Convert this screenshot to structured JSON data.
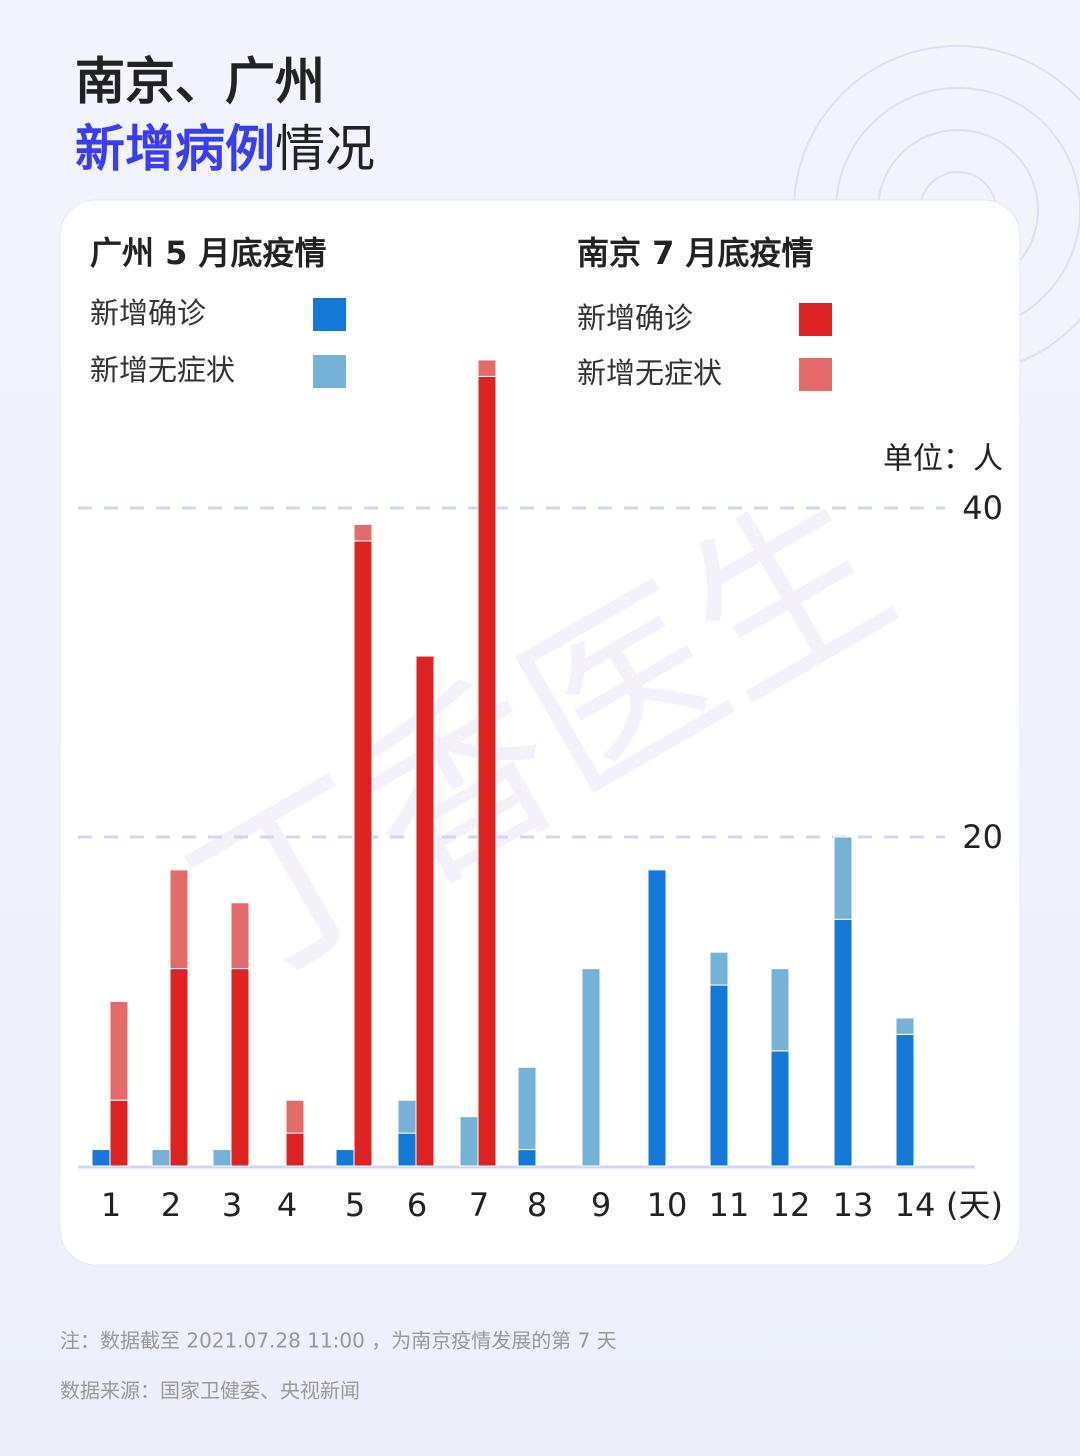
{
  "header": {
    "title_line1": "南京、广州",
    "title_highlight": "新增病例",
    "title_rest": "情况"
  },
  "chart_data": {
    "type": "bar",
    "stacked": true,
    "categories": [
      "1",
      "2",
      "3",
      "4",
      "5",
      "6",
      "7",
      "8",
      "9",
      "10",
      "11",
      "12",
      "13",
      "14"
    ],
    "x_unit": "(天)",
    "y_unit": "单位：人",
    "ylim": [
      0,
      50
    ],
    "yticks": [
      20,
      40
    ],
    "grid": true,
    "groups": [
      {
        "title": "广州 5 月底疫情",
        "series": [
          {
            "name": "新增确诊",
            "color": "#1479d6",
            "values": [
              1,
              0,
              0,
              0,
              1,
              2,
              0,
              1,
              0,
              18,
              11,
              7,
              15,
              8
            ]
          },
          {
            "name": "新增无症状",
            "color": "#76b2d6",
            "values": [
              0,
              1,
              1,
              0,
              0,
              2,
              3,
              5,
              12,
              0,
              2,
              5,
              5,
              1
            ]
          }
        ]
      },
      {
        "title": "南京 7 月底疫情",
        "series": [
          {
            "name": "新增确诊",
            "color": "#dd2222",
            "values": [
              4,
              12,
              12,
              2,
              38,
              31,
              48,
              null,
              null,
              null,
              null,
              null,
              null,
              null
            ]
          },
          {
            "name": "新增无症状",
            "color": "#e36b6b",
            "values": [
              6,
              6,
              4,
              2,
              1,
              0,
              1,
              null,
              null,
              null,
              null,
              null,
              null,
              null
            ]
          }
        ]
      }
    ]
  },
  "watermark": "丁香医生",
  "footer": {
    "note": "注：数据截至 2021.07.28 11:00 ，为南京疫情发展的第 7 天",
    "source": "数据来源：国家卫健委、央视新闻"
  }
}
